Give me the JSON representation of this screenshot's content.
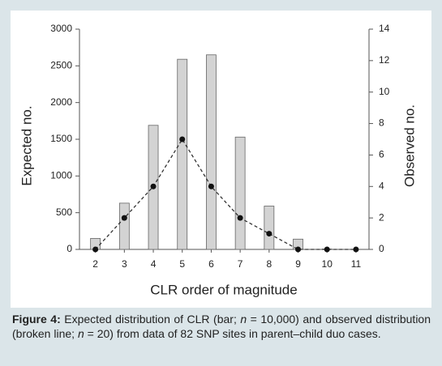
{
  "chart_data": {
    "type": "bar",
    "x_label": "CLR order of magnitude",
    "y_label": "Expected no.",
    "y2_label": "Observed no.",
    "categories": [
      "2",
      "3",
      "4",
      "5",
      "6",
      "7",
      "8",
      "9",
      "10",
      "11"
    ],
    "series": [
      {
        "type": "bar",
        "color": "#d3d3d3",
        "values": [
          150,
          630,
          1690,
          2590,
          2650,
          1530,
          590,
          140,
          5,
          0
        ]
      },
      {
        "type": "line",
        "axis": "y2",
        "color": "#333333",
        "values": [
          0,
          2,
          4,
          7,
          4,
          2,
          1,
          0,
          0,
          0
        ]
      }
    ],
    "ylim": [
      0,
      3000
    ],
    "yticks": [
      0,
      500,
      1000,
      1500,
      2000,
      2500,
      3000
    ],
    "y2lim": [
      0,
      14
    ],
    "y2ticks": [
      0,
      2,
      4,
      6,
      8,
      10,
      12,
      14
    ],
    "grid": false
  },
  "caption": {
    "label": "Figure 4:",
    "parts": [
      "Expected distribution of CLR (bar; ",
      "n",
      " = 10,000) and observed distribution (broken line; ",
      "n",
      " = 20) from data of 82 SNP sites in parent–child duo cases."
    ]
  }
}
